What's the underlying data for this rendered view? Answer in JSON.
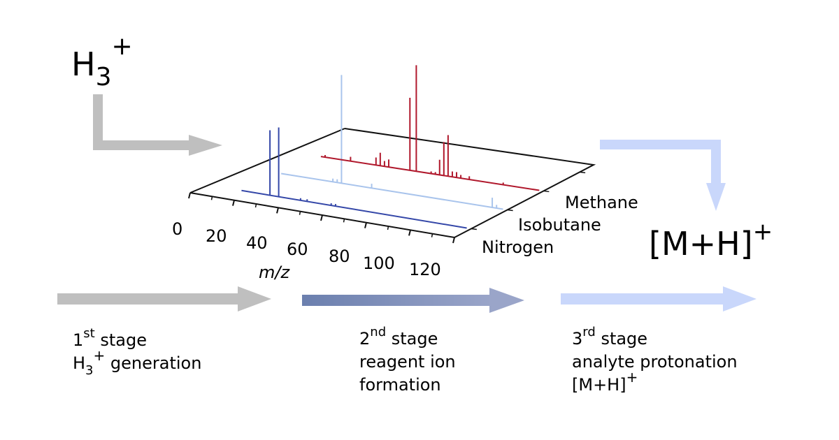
{
  "colors": {
    "gray_arrow": "#bfbfbf",
    "stage2_arrow_start": "#6b7fae",
    "stage2_arrow_end": "#9aa5c9",
    "light_arrow": "#c9d7fb",
    "nitrogen": "#3447a8",
    "isobutane": "#a9c4ec",
    "methane": "#b0182c",
    "axis": "#111111"
  },
  "labels": {
    "h3_base": "H",
    "h3_sub": "3",
    "h3_sup": "+",
    "mh_base": "[M+H]",
    "mh_sup": "+",
    "xlabel": "m/z"
  },
  "stages": [
    {
      "num": "1",
      "ord": "st",
      "word": "stage",
      "line2_base": "H",
      "line2_sub": "3",
      "line2_sup": "+",
      "line2_rest": " generation",
      "line3": ""
    },
    {
      "num": "2",
      "ord": "nd",
      "word": "stage",
      "line2_base": "reagent ion",
      "line2_sub": "",
      "line2_sup": "",
      "line2_rest": "",
      "line3": "formation"
    },
    {
      "num": "3",
      "ord": "rd",
      "word": "stage",
      "line2_base": "analyte protonation",
      "line2_sub": "",
      "line2_sup": "",
      "line2_rest": "",
      "line3": "[M+H]",
      "line3_sup": "+"
    }
  ],
  "chart_data": {
    "type": "line",
    "xlabel": "m/z",
    "xlim": [
      0,
      120
    ],
    "x_ticks": [
      0,
      20,
      40,
      60,
      80,
      100,
      120
    ],
    "series": [
      {
        "name": "Nitrogen",
        "peaks": [
          [
            28,
            60
          ],
          [
            32,
            64
          ],
          [
            42,
            2
          ],
          [
            45,
            2
          ],
          [
            56,
            2
          ],
          [
            58,
            2
          ]
        ]
      },
      {
        "name": "Isobutane",
        "peaks": [
          [
            43,
            100
          ],
          [
            57,
            4
          ],
          [
            39,
            3
          ],
          [
            41,
            3
          ],
          [
            113,
            9
          ],
          [
            115,
            3
          ]
        ]
      },
      {
        "name": "Methane",
        "peaks": [
          [
            17,
            2
          ],
          [
            29,
            4
          ],
          [
            41,
            7
          ],
          [
            43,
            12
          ],
          [
            45,
            5
          ],
          [
            47,
            7
          ],
          [
            57,
            67
          ],
          [
            60,
            98
          ],
          [
            67,
            2
          ],
          [
            69,
            2
          ],
          [
            71,
            14
          ],
          [
            73,
            31
          ],
          [
            75,
            38
          ],
          [
            77,
            5
          ],
          [
            79,
            5
          ],
          [
            81,
            3
          ],
          [
            85,
            3
          ],
          [
            101,
            2
          ]
        ]
      }
    ]
  }
}
